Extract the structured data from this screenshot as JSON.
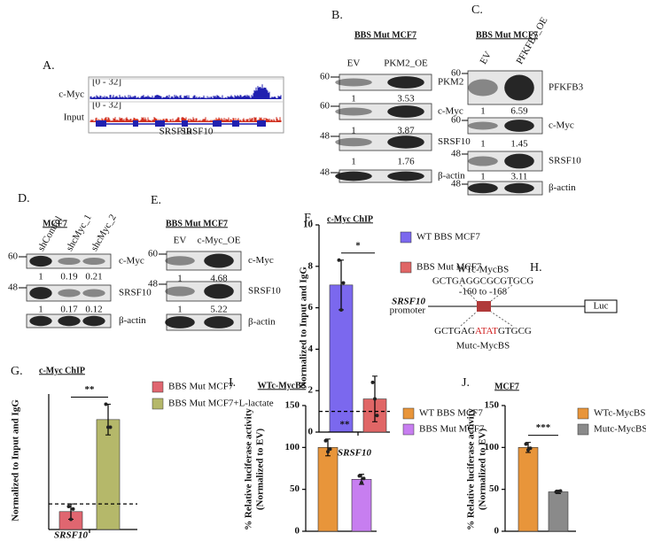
{
  "chart_data": [
    {
      "type": "bar",
      "panel_label": "F.",
      "title": "c-Myc ChIP",
      "ylabel": [
        "Normalized to Input and IgG"
      ],
      "xlabel": "SRSF10",
      "ylim": [
        0,
        10
      ],
      "yticks": [
        0,
        2,
        4,
        6,
        8,
        10
      ],
      "refline": 1,
      "significance": "*",
      "series": [
        {
          "name": "WT BBS MCF7",
          "color": "#7b68ee",
          "values": [
            7.1
          ],
          "errors": [
            1.2
          ],
          "points": [
            8.3,
            5.9,
            7.2
          ]
        },
        {
          "name": "BBS Mut MCF7",
          "color": "#e06666",
          "values": [
            1.6
          ],
          "errors": [
            1.1
          ],
          "points": [
            2.4,
            1.6,
            0.8
          ]
        }
      ]
    },
    {
      "type": "bar",
      "panel_label": "G.",
      "title": "c-Myc ChIP",
      "ylabel": [
        "Normalized to Input and IgG"
      ],
      "xlabel": "SRSF10",
      "ylim": [
        0,
        5.3
      ],
      "yticks": [],
      "refline": 1,
      "significance": "**",
      "series": [
        {
          "name": "BBS Mut MCF7",
          "color": "#e06670",
          "values": [
            0.7
          ],
          "errors": [
            0.3
          ],
          "points": [
            0.9,
            0.4,
            0.8
          ]
        },
        {
          "name": "BBS Mut MCF7+L-lactate",
          "color": "#b5b86a",
          "values": [
            4.3
          ],
          "errors": [
            0.6
          ],
          "points": [
            4.9,
            4.0,
            4.0
          ]
        }
      ]
    },
    {
      "type": "bar",
      "panel_label": "I.",
      "title": "WTc-MycBS",
      "ylabel": [
        "% Relative luciferase activity",
        "(Normalized to EV)"
      ],
      "ylim": [
        0,
        150
      ],
      "yticks": [
        0,
        50,
        100,
        150
      ],
      "significance": "**",
      "series": [
        {
          "name": "WT BBS MCF7",
          "color": "#e8953a",
          "values": [
            100
          ],
          "errors": [
            10
          ],
          "points": [
            108,
            95,
            98
          ]
        },
        {
          "name": "BBS Mut MCF7",
          "color": "#c77ef0",
          "values": [
            62
          ],
          "errors": [
            6
          ],
          "points": [
            66,
            58,
            63
          ]
        }
      ]
    },
    {
      "type": "bar",
      "panel_label": "J.",
      "title": "MCF7",
      "ylabel": [
        "% Relative luciferase activity",
        "(Normalized to EV)"
      ],
      "ylim": [
        0,
        150
      ],
      "yticks": [
        0,
        50,
        100,
        150
      ],
      "significance": "***",
      "series": [
        {
          "name": "WTc-MycBS",
          "color": "#e8953a",
          "values": [
            100
          ],
          "errors": [
            6
          ],
          "points": [
            104,
            97,
            99
          ]
        },
        {
          "name": "Mutc-MycBS",
          "color": "#8a8a8a",
          "values": [
            47
          ],
          "errors": [
            2
          ],
          "points": [
            47,
            47,
            48
          ]
        }
      ]
    }
  ],
  "panels": {
    "A": {
      "label": "A.",
      "tracks": [
        {
          "name": "c-Myc",
          "range": "[0 - 32]",
          "color": "#2020b0"
        },
        {
          "name": "Input",
          "range": "[0 - 32]",
          "color": "#d03020"
        }
      ],
      "genes": [
        "SRSF10",
        "SRSF10"
      ]
    },
    "B": {
      "label": "B.",
      "title": "BBS Mut MCF7",
      "lanes": [
        "EV",
        "PKM2_OE"
      ],
      "rows": [
        {
          "marker": 60,
          "protein": "PKM2",
          "quant": [
            1,
            3.53
          ]
        },
        {
          "marker": 60,
          "protein": "c-Myc",
          "quant": [
            1,
            3.87
          ]
        },
        {
          "marker": 48,
          "protein": "SRSF10",
          "quant": [
            1,
            1.76
          ]
        },
        {
          "marker": 48,
          "protein": "β-actin"
        }
      ]
    },
    "C": {
      "label": "C.",
      "title": "BBS Mut MCF7",
      "lanes": [
        "EV",
        "PFKFB3_OE"
      ],
      "rows": [
        {
          "marker": 60,
          "protein": "PFKFB3",
          "quant": [
            1,
            6.59
          ]
        },
        {
          "marker": 60,
          "protein": "c-Myc",
          "quant": [
            1,
            1.45
          ]
        },
        {
          "marker": 48,
          "protein": "SRSF10",
          "quant": [
            1,
            3.11
          ]
        },
        {
          "marker": 48,
          "protein": "β-actin"
        }
      ]
    },
    "D": {
      "label": "D.",
      "title": "MCF7",
      "lanes": [
        "shControl",
        "shcMyc_1",
        "shcMyc_2"
      ],
      "rows": [
        {
          "marker": 60,
          "protein": "c-Myc",
          "quant": [
            1,
            0.19,
            0.21
          ]
        },
        {
          "marker": 48,
          "protein": "SRSF10",
          "quant": [
            1,
            0.17,
            0.12
          ]
        },
        {
          "protein": "β-actin"
        }
      ]
    },
    "E": {
      "label": "E.",
      "title": "BBS Mut MCF7",
      "lanes": [
        "EV",
        "c-Myc_OE"
      ],
      "rows": [
        {
          "marker": 60,
          "protein": "c-Myc",
          "quant": [
            1,
            4.68
          ]
        },
        {
          "marker": 48,
          "protein": "SRSF10",
          "quant": [
            1,
            5.22
          ]
        },
        {
          "protein": "β-actin"
        }
      ]
    },
    "H": {
      "label": "H.",
      "wt_name": "WTc-MycBS",
      "wt_seq": "GCTGAGGCGCGTGCG",
      "position": "-160 to -168",
      "promoter": [
        "SRSF10",
        "promoter"
      ],
      "reporter": "Luc",
      "mut_seq": [
        "GCTGAG",
        "ATAT",
        "GTGCG"
      ],
      "mut_name": "Mutc-MycBS"
    }
  }
}
